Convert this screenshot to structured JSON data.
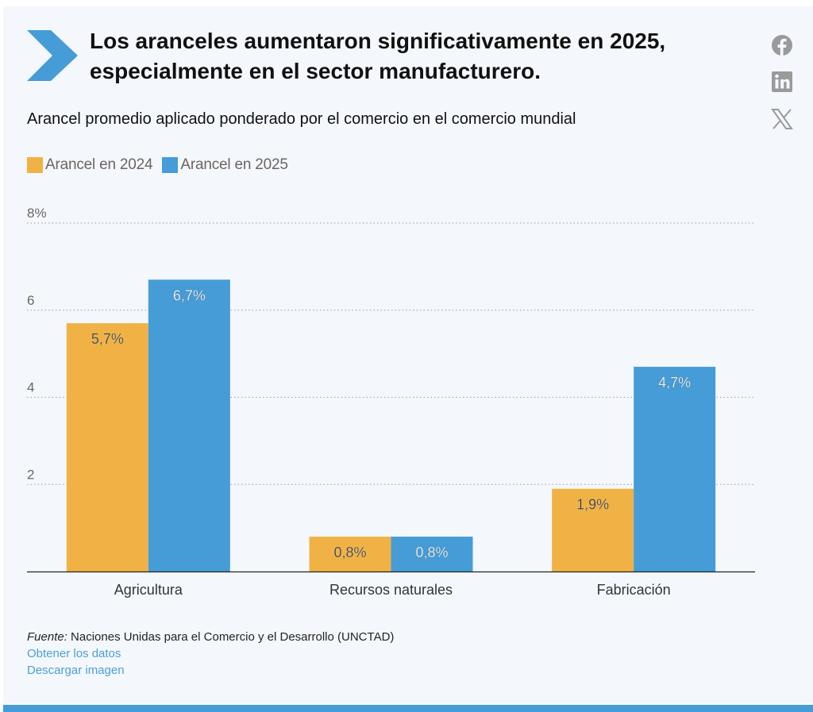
{
  "header": {
    "title": "Los aranceles aumentaron significativamente en 2025, especialmente en el sector manufacturero.",
    "icon": "chevron-right-icon"
  },
  "share": {
    "items": [
      {
        "name": "facebook",
        "icon": "facebook-icon"
      },
      {
        "name": "linkedin",
        "icon": "linkedin-icon"
      },
      {
        "name": "x",
        "icon": "x-icon"
      }
    ],
    "icon_color": "#9a9a9a"
  },
  "colors": {
    "series_2024": "#f0b244",
    "series_2025": "#459cd6",
    "accent": "#459cd6",
    "link": "#4a9fd8"
  },
  "chart_data": {
    "type": "bar",
    "title": "Arancel promedio aplicado ponderado por el comercio en el comercio mundial",
    "xlabel": "",
    "ylabel": "",
    "categories": [
      "Agricultura",
      "Recursos naturales",
      "Fabricación"
    ],
    "series": [
      {
        "name": "Arancel en 2024",
        "values": [
          5.7,
          0.8,
          1.9
        ],
        "labels": [
          "5,7%",
          "0,8%",
          "1,9%"
        ]
      },
      {
        "name": "Arancel en 2025",
        "values": [
          6.7,
          0.8,
          4.7
        ],
        "labels": [
          "6,7%",
          "0,8%",
          "4,7%"
        ]
      }
    ],
    "ylim": [
      0,
      8
    ],
    "yticks": [
      2,
      4,
      6,
      8
    ],
    "ytick_labels": [
      "2",
      "4",
      "6",
      "8%"
    ],
    "grid": true,
    "legend": "top-left"
  },
  "footer": {
    "source_label": "Fuente:",
    "source_text": "Naciones Unidas para el Comercio y el Desarrollo (UNCTAD)",
    "link_data": "Obtener los datos",
    "link_image": "Descargar imagen"
  }
}
